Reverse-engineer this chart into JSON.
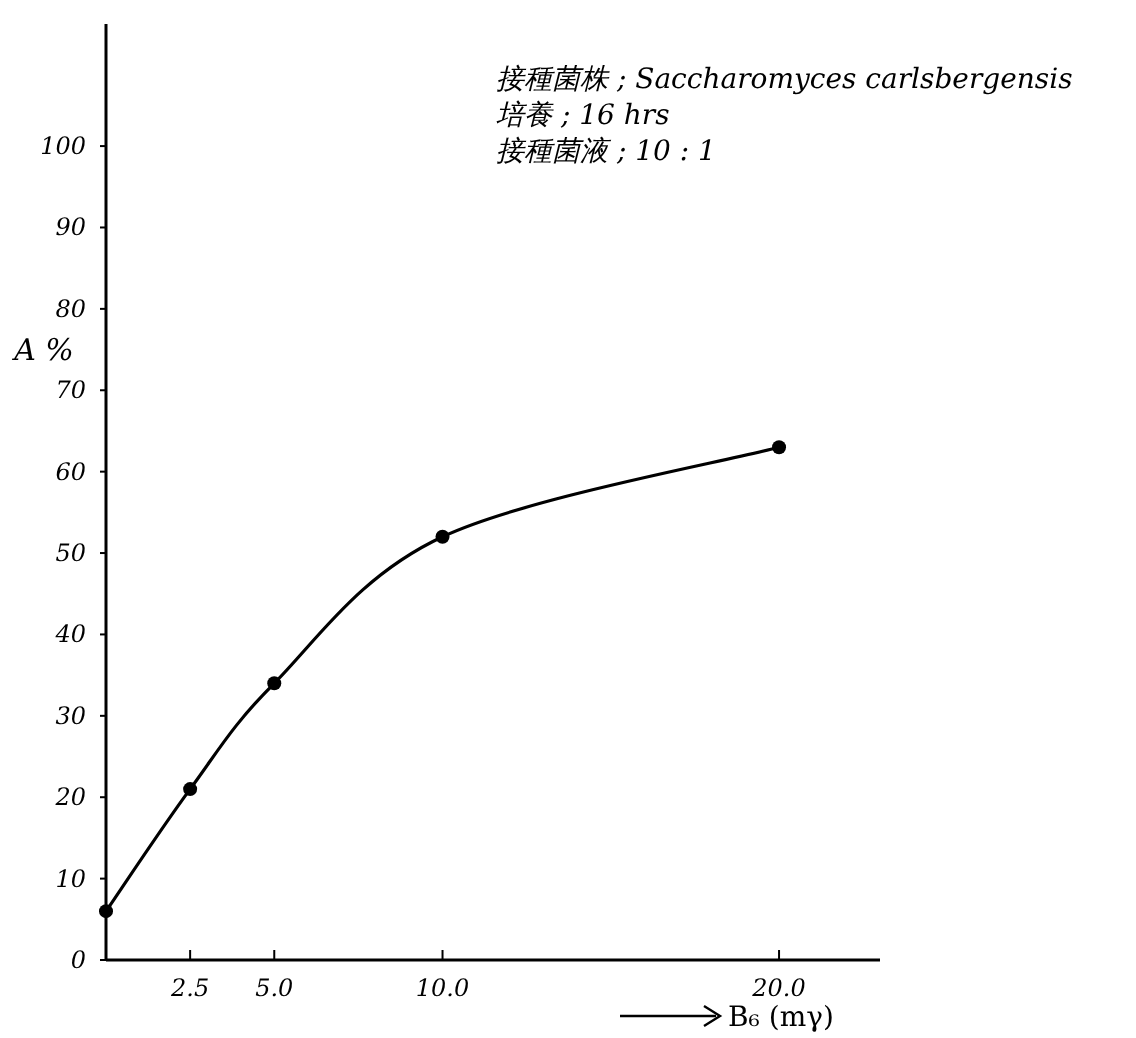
{
  "chart_data": {
    "type": "line",
    "xlabel": "B₆ (mγ)",
    "ylabel": "A %",
    "annotations": [
      "接種菌株 ; Saccharomyces carlsbergensis",
      "培養 ; 16 hrs",
      "接種菌液 ; 10 : 1"
    ],
    "x": [
      0,
      2.5,
      5,
      10,
      20
    ],
    "series": [
      {
        "color": "#000000",
        "values": [
          6,
          21,
          34,
          52,
          63
        ]
      }
    ],
    "xlim": [
      0,
      23
    ],
    "ylim": [
      0,
      115
    ],
    "xticks": [
      {
        "value": 2.5,
        "label": "2.5"
      },
      {
        "value": 5,
        "label": "5.0"
      },
      {
        "value": 10,
        "label": "10.0"
      },
      {
        "value": 20,
        "label": "20.0"
      }
    ],
    "yticks": [
      0,
      10,
      20,
      30,
      40,
      50,
      60,
      70,
      80,
      90,
      100
    ],
    "marker": "circle",
    "line_style": "solid"
  }
}
